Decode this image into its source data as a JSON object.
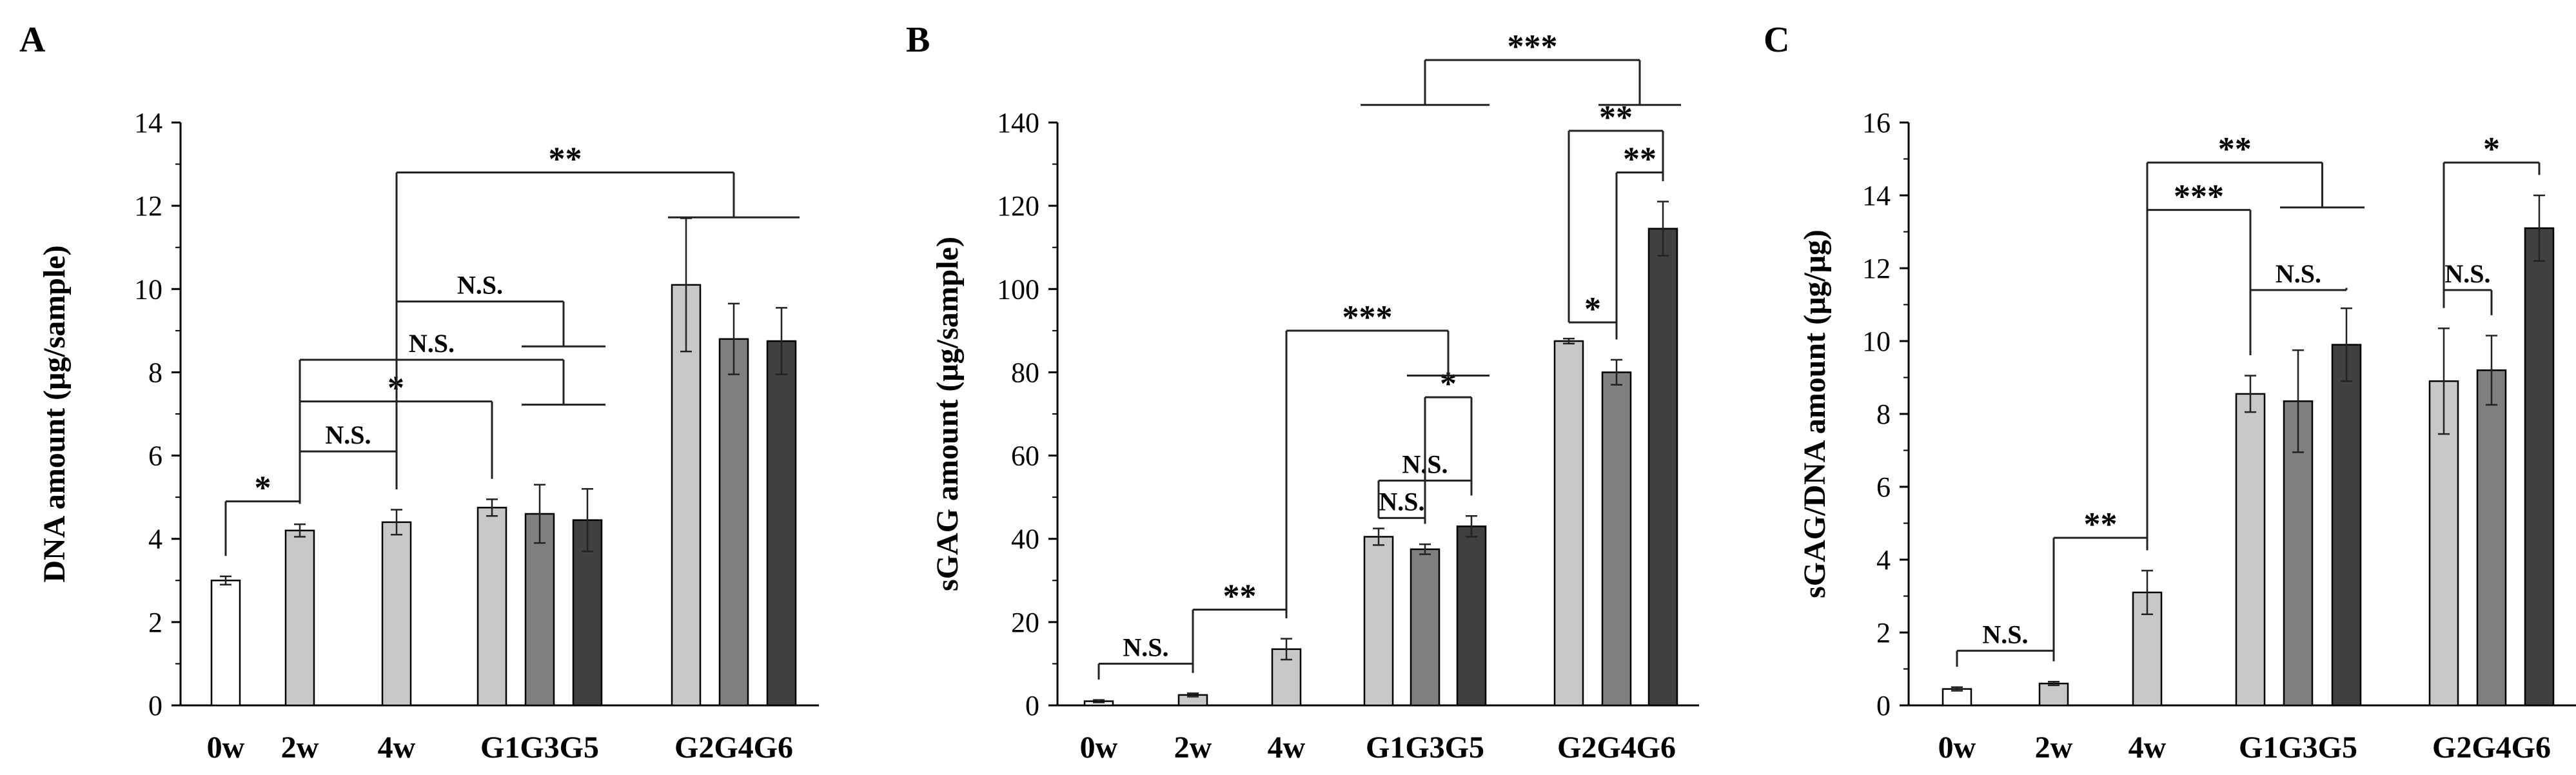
{
  "chart_data": [
    {
      "type": "bar",
      "panel": "A",
      "ylabel": "DNA amount (μg/sample)",
      "ylim": [
        0,
        14
      ],
      "yticks": [
        0,
        2,
        4,
        6,
        8,
        10,
        12,
        14
      ],
      "yticks_text": [
        "0",
        "2",
        "4",
        "6",
        "8",
        "10",
        "12",
        "14"
      ],
      "group_labels": [
        "0w",
        "2w",
        "4w",
        "G1G3G5",
        "G2G4G6"
      ],
      "bars": [
        {
          "name": "0w",
          "value": 3.0,
          "err": 0.1,
          "color": "#ffffff"
        },
        {
          "name": "2w",
          "value": 4.2,
          "err": 0.15,
          "color": "#c8c8c8"
        },
        {
          "name": "4w",
          "value": 4.4,
          "err": 0.3,
          "color": "#c8c8c8"
        },
        {
          "name": "G1",
          "value": 4.75,
          "err": 0.2,
          "color": "#c8c8c8"
        },
        {
          "name": "G3",
          "value": 4.6,
          "err": 0.7,
          "color": "#7f7f7f"
        },
        {
          "name": "G5",
          "value": 4.45,
          "err": 0.75,
          "color": "#404040"
        },
        {
          "name": "G2",
          "value": 10.1,
          "err": 1.6,
          "color": "#c8c8c8"
        },
        {
          "name": "G4",
          "value": 8.8,
          "err": 0.85,
          "color": "#7f7f7f"
        },
        {
          "name": "G6",
          "value": 8.75,
          "err": 0.8,
          "color": "#404040"
        }
      ],
      "annotations": [
        {
          "label": "*",
          "from": "0w",
          "to": "2w",
          "y": 4.9
        },
        {
          "label": "N.S.",
          "from": "2w",
          "to": "4w",
          "y": 6.1
        },
        {
          "label": "*",
          "from": "2w",
          "to": "G1",
          "y": 7.3
        },
        {
          "label": "N.S.",
          "from": "2w",
          "to": "G3G5",
          "y": 8.3
        },
        {
          "label": "N.S.",
          "from": "4w",
          "to": "G3G5",
          "y": 9.7
        },
        {
          "label": "**",
          "from": "4w",
          "to": "G2G4G6",
          "y": 12.8
        }
      ]
    },
    {
      "type": "bar",
      "panel": "B",
      "ylabel": "sGAG amount (μg/sample)",
      "ylim": [
        0,
        140
      ],
      "yticks": [
        0,
        20,
        40,
        60,
        80,
        100,
        120,
        140
      ],
      "yticks_text": [
        "0",
        "20",
        "40",
        "60",
        "80",
        "100",
        "120",
        "140"
      ],
      "group_labels": [
        "0w",
        "2w",
        "4w",
        "G1G3G5",
        "G2G4G6"
      ],
      "bars": [
        {
          "name": "0w",
          "value": 1.0,
          "err": 0.3,
          "color": "#ffffff"
        },
        {
          "name": "2w",
          "value": 2.5,
          "err": 0.4,
          "color": "#c8c8c8"
        },
        {
          "name": "4w",
          "value": 13.5,
          "err": 2.5,
          "color": "#c8c8c8"
        },
        {
          "name": "G1",
          "value": 40.5,
          "err": 2.0,
          "color": "#c8c8c8"
        },
        {
          "name": "G3",
          "value": 37.5,
          "err": 1.2,
          "color": "#7f7f7f"
        },
        {
          "name": "G5",
          "value": 43.0,
          "err": 2.5,
          "color": "#404040"
        },
        {
          "name": "G2",
          "value": 87.5,
          "err": 0.6,
          "color": "#c8c8c8"
        },
        {
          "name": "G4",
          "value": 80.0,
          "err": 3.0,
          "color": "#7f7f7f"
        },
        {
          "name": "G6",
          "value": 114.5,
          "err": 6.5,
          "color": "#404040"
        }
      ],
      "annotations": [
        {
          "label": "N.S.",
          "from": "0w",
          "to": "2w",
          "y": 10
        },
        {
          "label": "**",
          "from": "2w",
          "to": "4w",
          "y": 23
        },
        {
          "label": "N.S.",
          "from": "G1",
          "to": "G3",
          "y": 45
        },
        {
          "label": "N.S.",
          "from": "G1",
          "to": "G5",
          "y": 54
        },
        {
          "label": "*",
          "from": "G3",
          "to": "G5",
          "y": 74
        },
        {
          "label": "***",
          "from": "4w",
          "to": "G3G5",
          "y": 90
        },
        {
          "label": "*",
          "from": "G2",
          "to": "G4",
          "y": 92
        },
        {
          "label": "**",
          "from": "G4",
          "to": "G6",
          "y": 128
        },
        {
          "label": "**",
          "from": "G2",
          "to": "G6",
          "y": 138
        },
        {
          "label": "***",
          "from": "G1G3G5",
          "to": "G4G6",
          "y": 155
        }
      ]
    },
    {
      "type": "bar",
      "panel": "C",
      "ylabel": "sGAG/DNA amount (μg/μg)",
      "ylim": [
        0,
        16
      ],
      "yticks": [
        0,
        2,
        4,
        6,
        8,
        10,
        12,
        14,
        16
      ],
      "yticks_text": [
        "0",
        "2",
        "4",
        "6",
        "8",
        "10",
        "12",
        "14",
        "16"
      ],
      "group_labels": [
        "0w",
        "2w",
        "4w",
        "G1G3G5",
        "G2G4G6"
      ],
      "bars": [
        {
          "name": "0w",
          "value": 0.45,
          "err": 0.05,
          "color": "#ffffff"
        },
        {
          "name": "2w",
          "value": 0.6,
          "err": 0.05,
          "color": "#c8c8c8"
        },
        {
          "name": "4w",
          "value": 3.1,
          "err": 0.6,
          "color": "#c8c8c8"
        },
        {
          "name": "G1",
          "value": 8.55,
          "err": 0.5,
          "color": "#c8c8c8"
        },
        {
          "name": "G3",
          "value": 8.35,
          "err": 1.4,
          "color": "#7f7f7f"
        },
        {
          "name": "G5",
          "value": 9.9,
          "err": 1.0,
          "color": "#404040"
        },
        {
          "name": "G2",
          "value": 8.9,
          "err": 1.45,
          "color": "#c8c8c8"
        },
        {
          "name": "G4",
          "value": 9.2,
          "err": 0.95,
          "color": "#7f7f7f"
        },
        {
          "name": "G6",
          "value": 13.1,
          "err": 0.9,
          "color": "#404040"
        }
      ],
      "annotations": [
        {
          "label": "N.S.",
          "from": "0w",
          "to": "2w",
          "y": 1.5
        },
        {
          "label": "**",
          "from": "2w",
          "to": "4w",
          "y": 4.6
        },
        {
          "label": "N.S.",
          "from": "G1",
          "to": "G5",
          "y": 11.4
        },
        {
          "label": "***",
          "from": "4w",
          "to": "G1",
          "y": 13.6
        },
        {
          "label": "**",
          "from": "4w",
          "to": "G3G5",
          "y": 14.9
        },
        {
          "label": "N.S.",
          "from": "G2",
          "to": "G4",
          "y": 11.4
        },
        {
          "label": "*",
          "from": "G2",
          "to": "G6",
          "y": 14.9
        }
      ]
    }
  ]
}
